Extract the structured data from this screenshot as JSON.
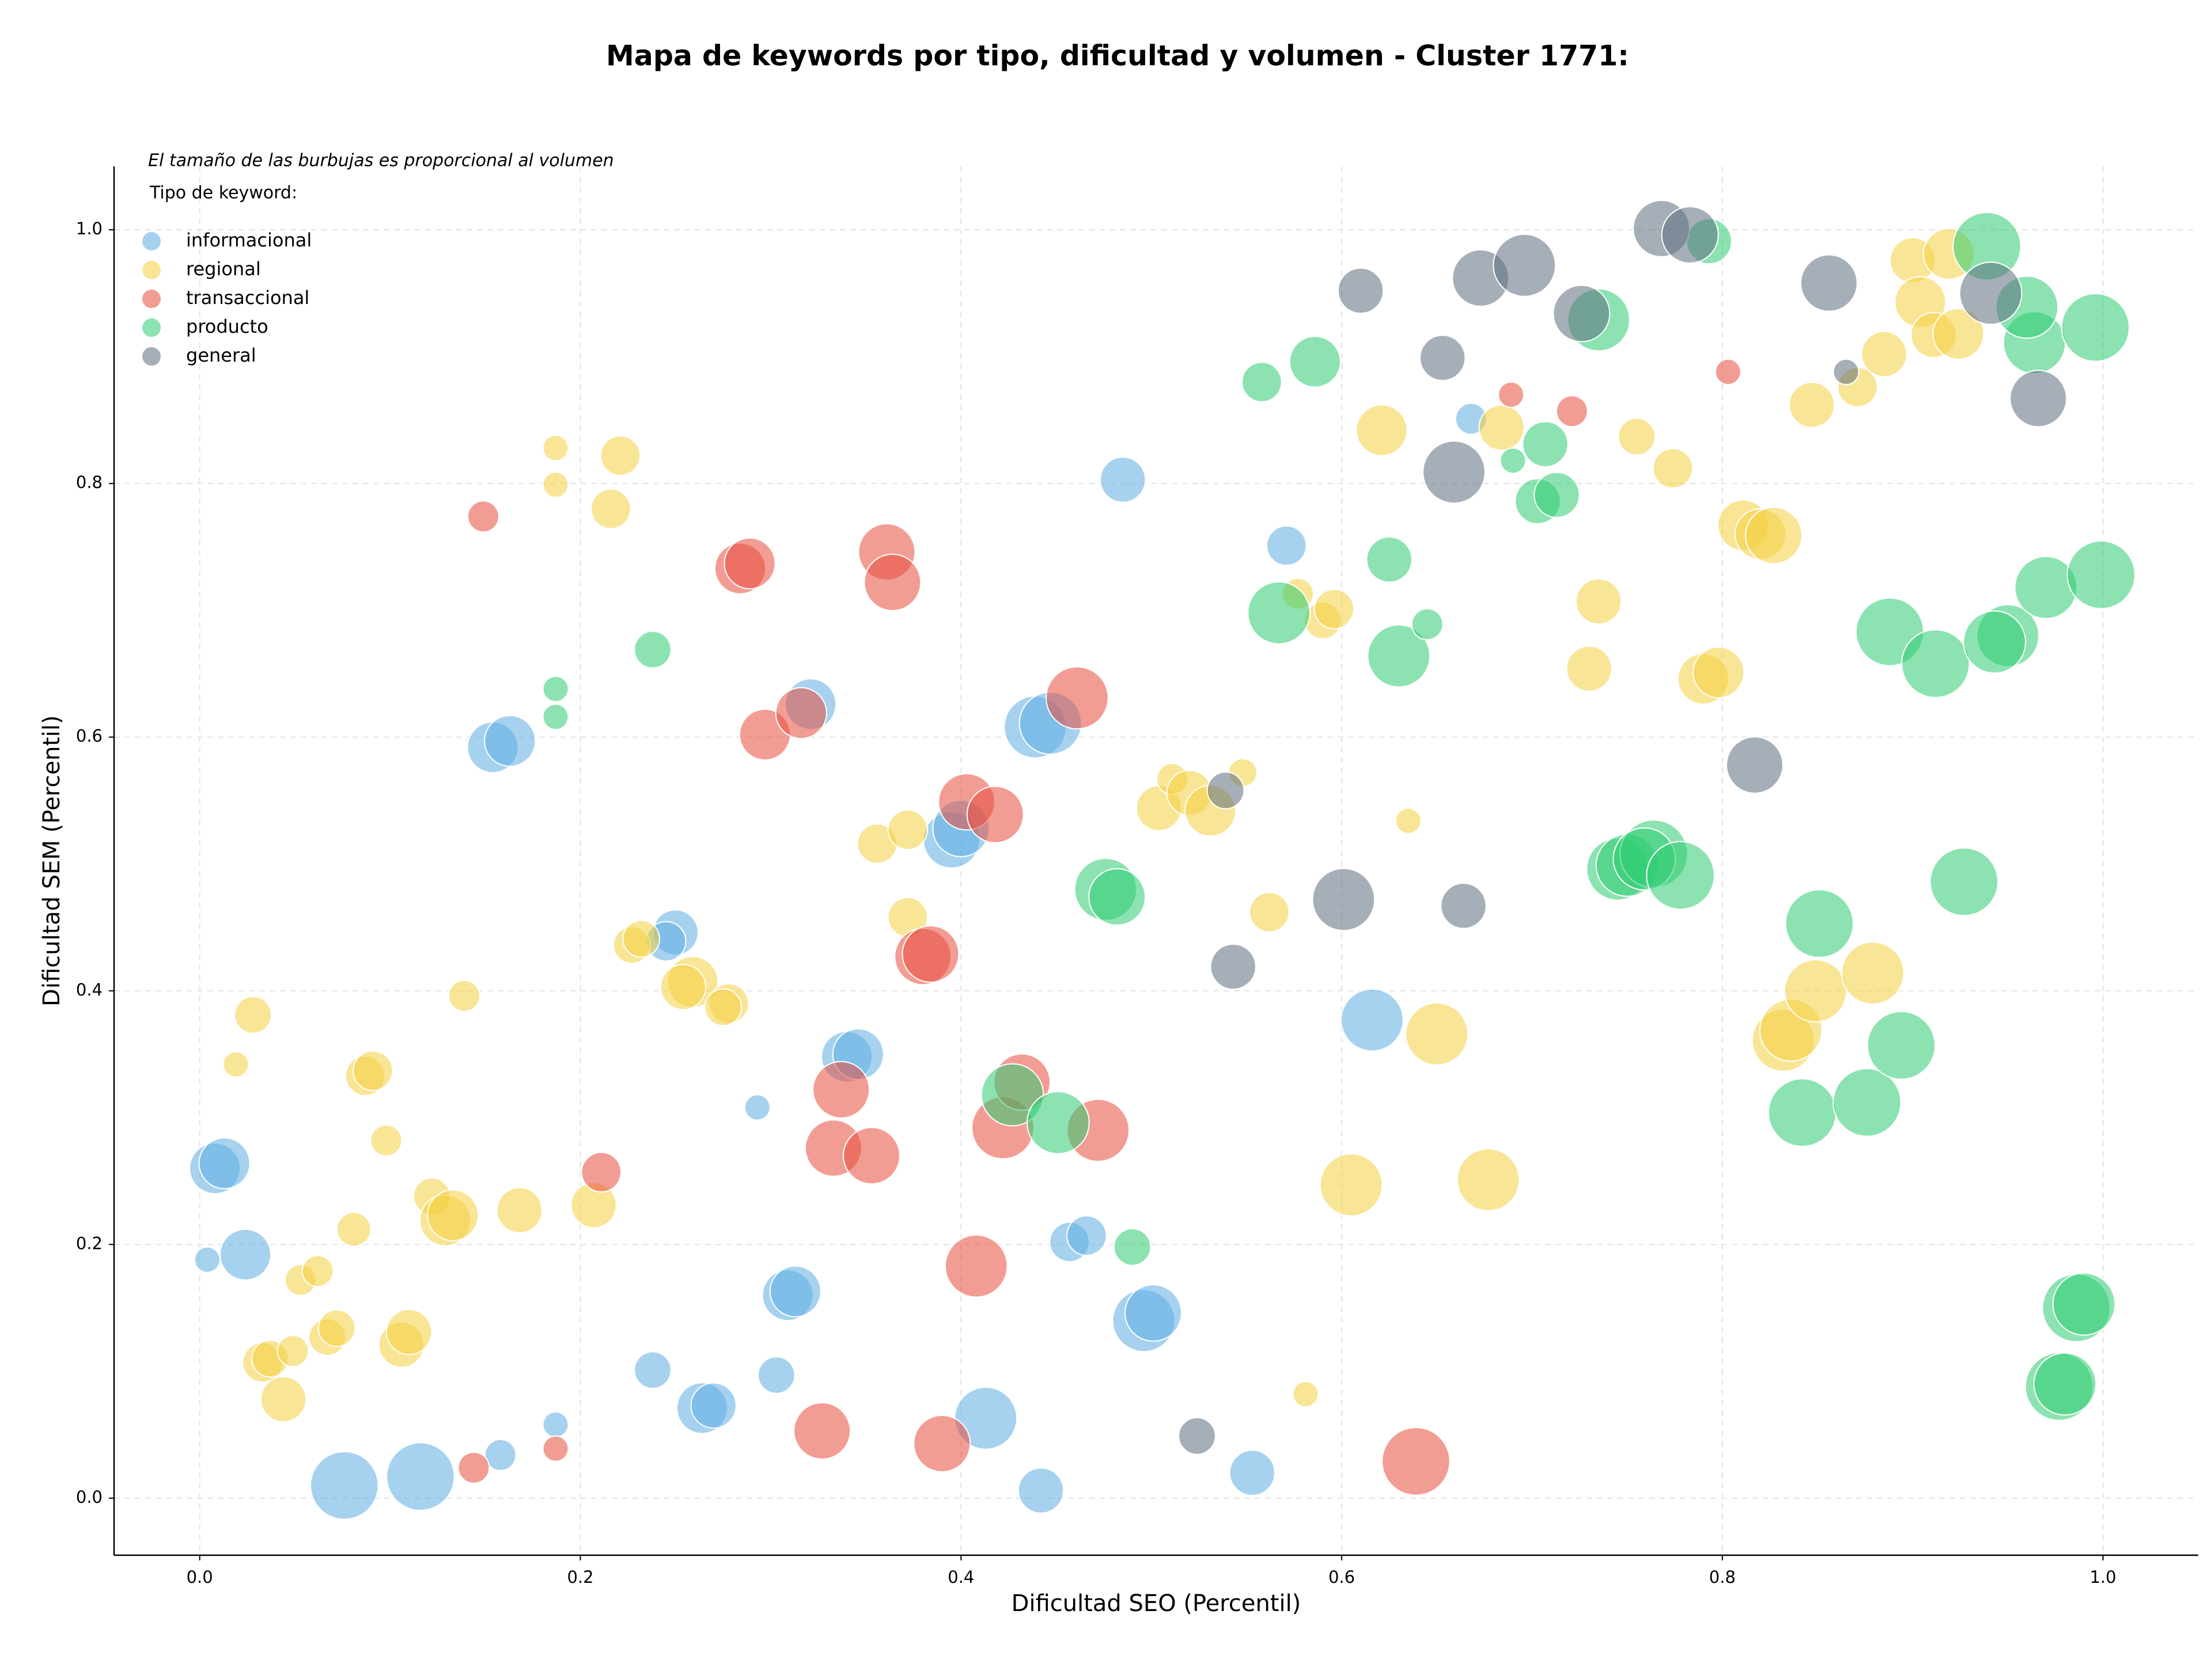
{
  "chart_data": {
    "type": "scatter",
    "title": "Mapa de keywords por tipo, dificultad y volumen - Cluster 1771:",
    "annotation": "El tamaño de las burbujas es proporcional al volumen",
    "legend_title": "Tipo de keyword:",
    "legend_position": "upper left",
    "x_label": "Dificultad SEO (Percentil)",
    "y_label": "Dificultad SEM (Percentil)",
    "xlim": [
      -0.045,
      1.05
    ],
    "ylim": [
      -0.045,
      1.05
    ],
    "xticks": [
      {
        "value": 0,
        "label": "0.0"
      },
      0.2,
      0.4,
      0.6,
      0.8,
      {
        "value": 1,
        "label": "1.0"
      }
    ],
    "yticks": [
      {
        "value": 0,
        "label": "0.0"
      },
      0.2,
      0.4,
      0.6,
      0.8,
      {
        "value": 1,
        "label": "1.0"
      }
    ],
    "grid": true,
    "series": [
      {
        "name": "informacional",
        "color": "#5dade2",
        "x": [
          0.008,
          0.013,
          0.004,
          0.024,
          0.076,
          0.116,
          0.158,
          0.187,
          0.154,
          0.163,
          0.238,
          0.264,
          0.27,
          0.303,
          0.293,
          0.309,
          0.313,
          0.321,
          0.25,
          0.245,
          0.34,
          0.346,
          0.395,
          0.4,
          0.413,
          0.442,
          0.439,
          0.447,
          0.457,
          0.466,
          0.485,
          0.496,
          0.501,
          0.553,
          0.571,
          0.616,
          0.668
        ],
        "y": [
          0.26,
          0.264,
          0.188,
          0.192,
          0.01,
          0.017,
          0.034,
          0.058,
          0.592,
          0.597,
          0.101,
          0.071,
          0.073,
          0.097,
          0.308,
          0.16,
          0.163,
          0.626,
          0.446,
          0.439,
          0.348,
          0.35,
          0.519,
          0.528,
          0.063,
          0.006,
          0.608,
          0.611,
          0.202,
          0.207,
          0.803,
          0.14,
          0.146,
          0.02,
          0.751,
          0.377,
          0.851
        ],
        "sizes": [
          18,
          18,
          9,
          18,
          24,
          24,
          11,
          9,
          18,
          18,
          13,
          18,
          16,
          13,
          9,
          18,
          18,
          18,
          16,
          14,
          18,
          18,
          20,
          20,
          22,
          16,
          22,
          22,
          14,
          14,
          16,
          22,
          20,
          16,
          14,
          22,
          11
        ]
      },
      {
        "name": "regional",
        "color": "#f4d03f",
        "x": [
          0.028,
          0.019,
          0.087,
          0.091,
          0.098,
          0.081,
          0.053,
          0.062,
          0.033,
          0.037,
          0.049,
          0.044,
          0.067,
          0.072,
          0.106,
          0.11,
          0.122,
          0.129,
          0.133,
          0.168,
          0.207,
          0.139,
          0.187,
          0.187,
          0.221,
          0.216,
          0.227,
          0.232,
          0.259,
          0.254,
          0.278,
          0.275,
          0.356,
          0.372,
          0.372,
          0.504,
          0.511,
          0.52,
          0.531,
          0.548,
          0.562,
          0.577,
          0.59,
          0.596,
          0.621,
          0.635,
          0.581,
          0.605,
          0.65,
          0.677,
          0.684,
          0.735,
          0.73,
          0.755,
          0.774,
          0.79,
          0.798,
          0.811,
          0.82,
          0.827,
          0.832,
          0.836,
          0.847,
          0.849,
          0.879,
          0.871,
          0.885,
          0.9,
          0.904,
          0.911,
          0.919,
          0.924
        ],
        "y": [
          0.381,
          0.342,
          0.333,
          0.337,
          0.282,
          0.212,
          0.172,
          0.179,
          0.107,
          0.11,
          0.116,
          0.078,
          0.127,
          0.134,
          0.121,
          0.131,
          0.238,
          0.219,
          0.223,
          0.227,
          0.231,
          0.396,
          0.828,
          0.799,
          0.822,
          0.78,
          0.436,
          0.441,
          0.407,
          0.403,
          0.39,
          0.387,
          0.516,
          0.527,
          0.458,
          0.544,
          0.567,
          0.556,
          0.542,
          0.572,
          0.462,
          0.713,
          0.692,
          0.701,
          0.842,
          0.534,
          0.082,
          0.247,
          0.366,
          0.251,
          0.844,
          0.707,
          0.654,
          0.837,
          0.812,
          0.646,
          0.651,
          0.767,
          0.76,
          0.759,
          0.361,
          0.369,
          0.862,
          0.4,
          0.414,
          0.876,
          0.902,
          0.976,
          0.943,
          0.917,
          0.981,
          0.918
        ],
        "sizes": [
          13,
          9,
          14,
          14,
          11,
          12,
          11,
          11,
          14,
          13,
          11,
          16,
          13,
          13,
          16,
          16,
          13,
          18,
          18,
          16,
          16,
          11,
          9,
          9,
          14,
          14,
          13,
          13,
          18,
          16,
          14,
          13,
          14,
          14,
          14,
          16,
          11,
          16,
          18,
          10,
          14,
          11,
          13,
          14,
          18,
          9,
          9,
          22,
          22,
          22,
          16,
          16,
          16,
          13,
          14,
          18,
          18,
          18,
          18,
          20,
          22,
          22,
          16,
          22,
          22,
          14,
          16,
          16,
          18,
          16,
          18,
          18
        ]
      },
      {
        "name": "transaccional",
        "color": "#e74c3c",
        "x": [
          0.149,
          0.144,
          0.187,
          0.211,
          0.284,
          0.289,
          0.297,
          0.316,
          0.327,
          0.333,
          0.337,
          0.353,
          0.361,
          0.364,
          0.38,
          0.384,
          0.39,
          0.408,
          0.403,
          0.418,
          0.422,
          0.432,
          0.461,
          0.472,
          0.639,
          0.689,
          0.721,
          0.803
        ],
        "y": [
          0.774,
          0.024,
          0.039,
          0.257,
          0.733,
          0.737,
          0.602,
          0.619,
          0.053,
          0.276,
          0.322,
          0.27,
          0.746,
          0.722,
          0.427,
          0.429,
          0.043,
          0.183,
          0.549,
          0.539,
          0.292,
          0.328,
          0.631,
          0.29,
          0.029,
          0.87,
          0.857,
          0.888
        ],
        "sizes": [
          11,
          11,
          9,
          14,
          18,
          18,
          18,
          18,
          20,
          20,
          20,
          20,
          20,
          20,
          20,
          20,
          20,
          22,
          20,
          20,
          22,
          20,
          22,
          22,
          24,
          9,
          11,
          9
        ]
      },
      {
        "name": "producto",
        "color": "#2ecc71",
        "x": [
          0.187,
          0.187,
          0.238,
          0.427,
          0.451,
          0.476,
          0.482,
          0.49,
          0.558,
          0.586,
          0.567,
          0.625,
          0.63,
          0.645,
          0.69,
          0.707,
          0.703,
          0.713,
          0.735,
          0.745,
          0.75,
          0.764,
          0.759,
          0.778,
          0.793,
          0.851,
          0.842,
          0.876,
          0.888,
          0.894,
          0.912,
          0.927,
          0.939,
          0.95,
          0.943,
          0.964,
          0.96,
          0.97,
          0.996,
          0.999,
          0.986,
          0.99,
          0.977,
          0.98
        ],
        "y": [
          0.638,
          0.616,
          0.669,
          0.318,
          0.296,
          0.48,
          0.474,
          0.198,
          0.88,
          0.896,
          0.698,
          0.74,
          0.664,
          0.689,
          0.818,
          0.831,
          0.786,
          0.791,
          0.929,
          0.496,
          0.499,
          0.508,
          0.504,
          0.491,
          0.991,
          0.453,
          0.304,
          0.312,
          0.683,
          0.357,
          0.658,
          0.486,
          0.987,
          0.68,
          0.675,
          0.911,
          0.939,
          0.718,
          0.923,
          0.728,
          0.15,
          0.153,
          0.088,
          0.09
        ],
        "sizes": [
          9,
          9,
          13,
          22,
          22,
          22,
          20,
          13,
          14,
          18,
          22,
          16,
          22,
          11,
          9,
          16,
          16,
          16,
          22,
          22,
          22,
          24,
          22,
          24,
          16,
          24,
          24,
          24,
          24,
          24,
          24,
          24,
          24,
          22,
          22,
          22,
          22,
          22,
          24,
          24,
          24,
          22,
          24,
          22
        ]
      },
      {
        "name": "general",
        "color": "#5d6d7e",
        "x": [
          0.61,
          0.653,
          0.659,
          0.673,
          0.696,
          0.726,
          0.768,
          0.783,
          0.856,
          0.865,
          0.941,
          0.966,
          0.539,
          0.543,
          0.601,
          0.664,
          0.524,
          0.817
        ],
        "y": [
          0.952,
          0.899,
          0.809,
          0.962,
          0.972,
          0.934,
          1.001,
          0.996,
          0.958,
          0.888,
          0.95,
          0.867,
          0.558,
          0.419,
          0.472,
          0.467,
          0.049,
          0.578
        ],
        "sizes": [
          16,
          16,
          22,
          20,
          22,
          20,
          20,
          20,
          20,
          9,
          22,
          20,
          13,
          16,
          22,
          16,
          13,
          20
        ]
      }
    ]
  }
}
